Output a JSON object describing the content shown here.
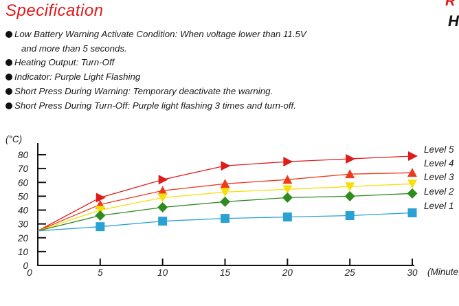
{
  "header": {
    "title": "Specification",
    "corner_mark_top": "R",
    "corner_mark_bottom": "H"
  },
  "spec_items": [
    {
      "lines": [
        "Low Battery Warning Activate Condition: When voltage lower than 11.5V",
        "and more than 5 seconds."
      ]
    },
    {
      "lines": [
        "Heating Output: Turn-Off"
      ]
    },
    {
      "lines": [
        "Indicator: Purple Light Flashing"
      ]
    },
    {
      "lines": [
        "Short Press During Warning: Temporary deactivate the warning."
      ]
    },
    {
      "lines": [
        "Short Press During Turn-Off: Purple light flashing 3 times and turn-off."
      ]
    }
  ],
  "chart_data": {
    "type": "line",
    "title": "",
    "xlabel": "(Minute",
    "ylabel": "(°C)",
    "x": [
      0,
      5,
      10,
      15,
      20,
      25,
      30
    ],
    "xticks": [
      "0",
      "5",
      "10",
      "15",
      "20",
      "25",
      "30"
    ],
    "yticks": [
      "0",
      "10",
      "20",
      "30",
      "40",
      "50",
      "60",
      "70",
      "80"
    ],
    "xlim": [
      0,
      30
    ],
    "ylim": [
      0,
      80
    ],
    "grid": false,
    "legend": "right, labels at line ends",
    "series": [
      {
        "name": "Level 5",
        "color": "#e11a1a",
        "marker": "triangle-right",
        "values": [
          25,
          49,
          62,
          72,
          75,
          77,
          79
        ]
      },
      {
        "name": "Level 4",
        "color": "#ee3a1c",
        "marker": "triangle-up",
        "values": [
          25,
          44,
          54,
          59,
          62,
          66,
          67
        ]
      },
      {
        "name": "Level 3",
        "color": "#f6df0c",
        "marker": "triangle-down",
        "values": [
          25,
          40,
          49,
          53,
          55,
          57,
          59
        ]
      },
      {
        "name": "Level 2",
        "color": "#2e8b1f",
        "marker": "diamond",
        "values": [
          25,
          36,
          42,
          46,
          49,
          50,
          52
        ]
      },
      {
        "name": "Level 1",
        "color": "#2aa1d3",
        "marker": "square",
        "values": [
          25,
          28,
          32,
          34,
          35,
          36,
          38
        ]
      }
    ]
  }
}
